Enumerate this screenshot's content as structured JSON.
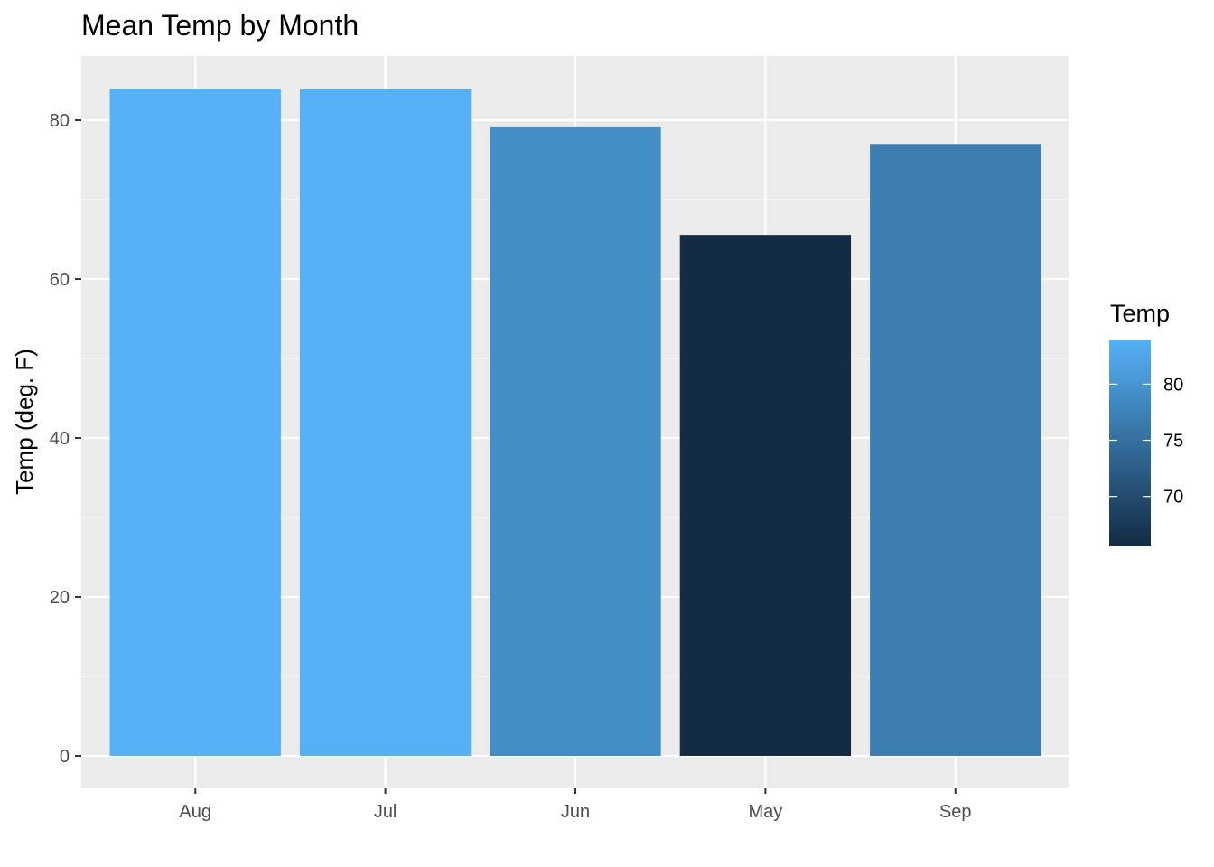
{
  "chart_data": {
    "type": "bar",
    "title": "Mean Temp by Month",
    "xlabel": "",
    "ylabel": "Temp (deg. F)",
    "categories": [
      "Aug",
      "Jul",
      "Jun",
      "May",
      "Sep"
    ],
    "values": [
      83.97,
      83.9,
      79.1,
      65.55,
      76.9
    ],
    "ylim": [
      0,
      88
    ],
    "yticks": [
      0,
      20,
      40,
      60,
      80
    ],
    "grid": true,
    "fill_scale": {
      "title": "Temp",
      "low_color": "#132B43",
      "high_color": "#56B1F7",
      "breaks": [
        70,
        75,
        80
      ],
      "legend_position": "right"
    }
  }
}
